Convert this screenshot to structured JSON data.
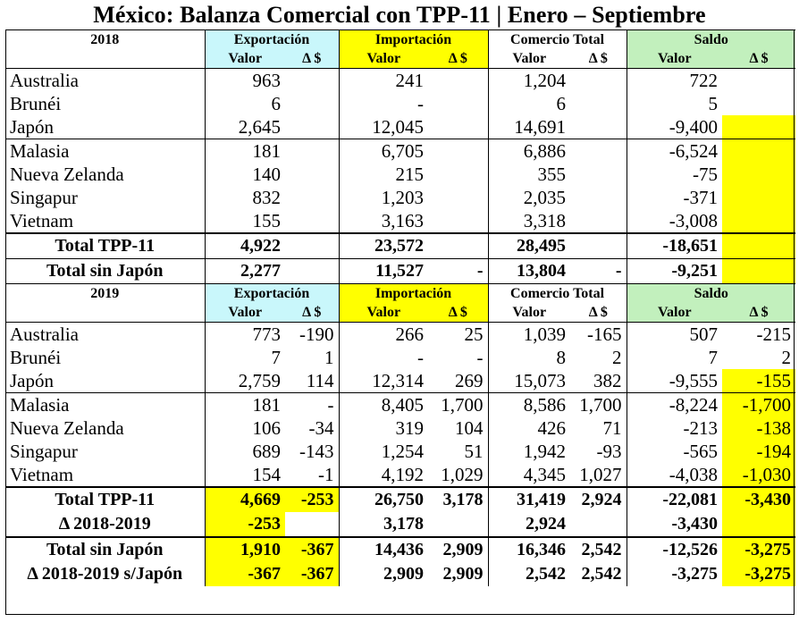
{
  "title": "México: Balanza Comercial con TPP-11 | Enero – Septiembre",
  "headers": {
    "exportacion": "Exportación",
    "importacion": "Importación",
    "comercio_total": "Comercio Total",
    "saldo": "Saldo",
    "valor": "Valor",
    "delta": "Δ $"
  },
  "colors": {
    "cyan": "#c9f7fb",
    "yellow": "#ffff00",
    "green": "#c2f0bd"
  },
  "section_2018": {
    "year": "2018",
    "rows": [
      {
        "name": "Australia",
        "exp": "963",
        "exp_d": "",
        "imp": "241",
        "imp_d": "",
        "ct": "1,204",
        "ct_d": "",
        "saldo": "722",
        "saldo_d": ""
      },
      {
        "name": "Brunéi",
        "exp": "6",
        "exp_d": "",
        "imp": "-",
        "imp_d": "",
        "ct": "6",
        "ct_d": "",
        "saldo": "5",
        "saldo_d": ""
      },
      {
        "name": "Japón",
        "exp": "2,645",
        "exp_d": "",
        "imp": "12,045",
        "imp_d": "",
        "ct": "14,691",
        "ct_d": "",
        "saldo": "-9,400",
        "saldo_d": ""
      },
      {
        "name": "Malasia",
        "exp": "181",
        "exp_d": "",
        "imp": "6,705",
        "imp_d": "",
        "ct": "6,886",
        "ct_d": "",
        "saldo": "-6,524",
        "saldo_d": ""
      },
      {
        "name": "Nueva Zelanda",
        "exp": "140",
        "exp_d": "",
        "imp": "215",
        "imp_d": "",
        "ct": "355",
        "ct_d": "",
        "saldo": "-75",
        "saldo_d": ""
      },
      {
        "name": "Singapur",
        "exp": "832",
        "exp_d": "",
        "imp": "1,203",
        "imp_d": "",
        "ct": "2,035",
        "ct_d": "",
        "saldo": "-371",
        "saldo_d": ""
      },
      {
        "name": "Vietnam",
        "exp": "155",
        "exp_d": "",
        "imp": "3,163",
        "imp_d": "",
        "ct": "3,318",
        "ct_d": "",
        "saldo": "-3,008",
        "saldo_d": ""
      }
    ],
    "totals": [
      {
        "name": "Total TPP-11",
        "exp": "4,922",
        "exp_d": "",
        "imp": "23,572",
        "imp_d": "",
        "ct": "28,495",
        "ct_d": "",
        "saldo": "-18,651",
        "saldo_d": ""
      },
      {
        "name": "Total sin Japón",
        "exp": "2,277",
        "exp_d": "",
        "imp": "11,527",
        "imp_d": "-",
        "ct": "13,804",
        "ct_d": "-",
        "saldo": "-9,251",
        "saldo_d": ""
      }
    ]
  },
  "section_2019": {
    "year": "2019",
    "rows": [
      {
        "name": "Australia",
        "exp": "773",
        "exp_d": "-190",
        "imp": "266",
        "imp_d": "25",
        "ct": "1,039",
        "ct_d": "-165",
        "saldo": "507",
        "saldo_d": "-215"
      },
      {
        "name": "Brunéi",
        "exp": "7",
        "exp_d": "1",
        "imp": "-",
        "imp_d": "-",
        "ct": "8",
        "ct_d": "2",
        "saldo": "7",
        "saldo_d": "2"
      },
      {
        "name": "Japón",
        "exp": "2,759",
        "exp_d": "114",
        "imp": "12,314",
        "imp_d": "269",
        "ct": "15,073",
        "ct_d": "382",
        "saldo": "-9,555",
        "saldo_d": "-155"
      },
      {
        "name": "Malasia",
        "exp": "181",
        "exp_d": "-",
        "imp": "8,405",
        "imp_d": "1,700",
        "ct": "8,586",
        "ct_d": "1,700",
        "saldo": "-8,224",
        "saldo_d": "-1,700"
      },
      {
        "name": "Nueva Zelanda",
        "exp": "106",
        "exp_d": "-34",
        "imp": "319",
        "imp_d": "104",
        "ct": "426",
        "ct_d": "71",
        "saldo": "-213",
        "saldo_d": "-138"
      },
      {
        "name": "Singapur",
        "exp": "689",
        "exp_d": "-143",
        "imp": "1,254",
        "imp_d": "51",
        "ct": "1,942",
        "ct_d": "-93",
        "saldo": "-565",
        "saldo_d": "-194"
      },
      {
        "name": "Vietnam",
        "exp": "154",
        "exp_d": "-1",
        "imp": "4,192",
        "imp_d": "1,029",
        "ct": "4,345",
        "ct_d": "1,027",
        "saldo": "-4,038",
        "saldo_d": "-1,030"
      }
    ],
    "totals": [
      {
        "name": "Total TPP-11",
        "exp": "4,669",
        "exp_d": "-253",
        "imp": "26,750",
        "imp_d": "3,178",
        "ct": "31,419",
        "ct_d": "2,924",
        "saldo": "-22,081",
        "saldo_d": "-3,430"
      },
      {
        "name": "Δ 2018-2019",
        "exp": "-253",
        "exp_d": "",
        "imp": "3,178",
        "imp_d": "",
        "ct": "2,924",
        "ct_d": "",
        "saldo": "-3,430",
        "saldo_d": ""
      },
      {
        "name": "Total sin Japón",
        "exp": "1,910",
        "exp_d": "-367",
        "imp": "14,436",
        "imp_d": "2,909",
        "ct": "16,346",
        "ct_d": "2,542",
        "saldo": "-12,526",
        "saldo_d": "-3,275"
      },
      {
        "name": "Δ 2018-2019 s/Japón",
        "exp": "-367",
        "exp_d": "-367",
        "imp": "2,909",
        "imp_d": "2,909",
        "ct": "2,542",
        "ct_d": "2,542",
        "saldo": "-3,275",
        "saldo_d": "-3,275"
      }
    ]
  }
}
